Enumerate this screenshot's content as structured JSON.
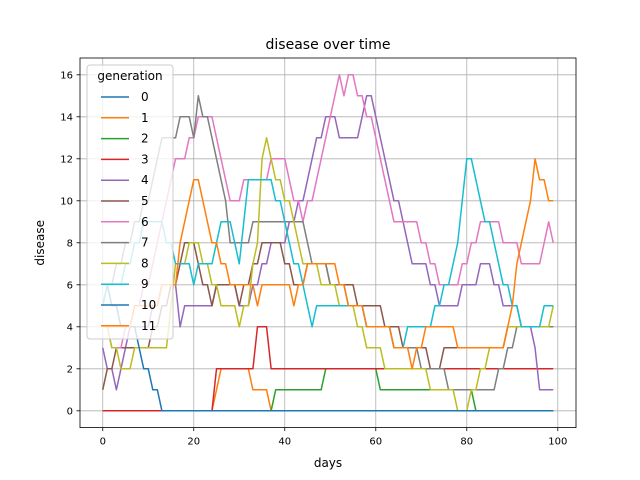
{
  "chart_data": {
    "type": "line",
    "title": "disease over time",
    "xlabel": "days",
    "ylabel": "disease",
    "xlim": [
      -5,
      104
    ],
    "ylim": [
      -0.8,
      16.8
    ],
    "xticks": [
      0,
      20,
      40,
      60,
      80,
      100
    ],
    "yticks": [
      0,
      2,
      4,
      6,
      8,
      10,
      12,
      14,
      16
    ],
    "grid": true,
    "legend": {
      "title": "generation",
      "placement": "upper-left"
    },
    "series": [
      {
        "name": "0",
        "color": "#1f77b4",
        "x": [
          0,
          99
        ],
        "y": [
          0,
          0
        ]
      },
      {
        "name": "1",
        "color": "#ff7f0e",
        "x": [
          0,
          24,
          25,
          26,
          32,
          33,
          36,
          37,
          99
        ],
        "y": [
          0,
          0,
          1,
          2,
          2,
          1,
          1,
          0,
          0
        ]
      },
      {
        "name": "2",
        "color": "#2ca02c",
        "x": [
          0,
          37,
          38,
          48,
          49,
          60,
          61,
          81,
          82,
          99
        ],
        "y": [
          0,
          0,
          1,
          1,
          2,
          2,
          1,
          1,
          0,
          0
        ]
      },
      {
        "name": "3",
        "color": "#d62728",
        "x": [
          0,
          24,
          25,
          33,
          34,
          36,
          37,
          99
        ],
        "y": [
          0,
          0,
          2,
          2,
          4,
          4,
          2,
          2
        ]
      },
      {
        "name": "4",
        "color": "#9467bd",
        "x": [
          0,
          1,
          2,
          3,
          4,
          5,
          6,
          7,
          8,
          10,
          12,
          14,
          16,
          17,
          18,
          19,
          20,
          22,
          24,
          26,
          28,
          30,
          32,
          34,
          36,
          38,
          40,
          42,
          44,
          46,
          48,
          50,
          52,
          54,
          56,
          58,
          60,
          62,
          64,
          66,
          68,
          70,
          72,
          74,
          76,
          78,
          80,
          82,
          84,
          86,
          88,
          90,
          92,
          94,
          96,
          98,
          99
        ],
        "y": [
          3,
          2,
          2,
          1,
          2,
          3,
          4,
          4,
          4,
          4,
          5,
          6,
          6,
          4,
          5,
          5,
          5,
          5,
          5,
          6,
          6,
          5,
          5,
          6,
          7,
          8,
          8,
          9,
          10,
          12,
          13,
          14,
          13,
          13,
          13,
          15,
          14,
          12,
          10,
          9,
          7,
          7,
          6,
          5,
          5,
          5,
          6,
          6,
          7,
          6,
          5,
          5,
          4,
          4,
          1,
          1,
          1
        ]
      },
      {
        "name": "5",
        "color": "#8c564b",
        "x": [
          0,
          2,
          4,
          6,
          8,
          10,
          12,
          14,
          16,
          18,
          20,
          22,
          24,
          26,
          28,
          30,
          32,
          34,
          36,
          38,
          40,
          42,
          44,
          46,
          48,
          50,
          52,
          54,
          56,
          58,
          60,
          62,
          64,
          66,
          68,
          70,
          72,
          74,
          76,
          78,
          80,
          82,
          84,
          86,
          88,
          90,
          92,
          94,
          96,
          98,
          99
        ],
        "y": [
          1,
          2,
          3,
          3,
          3,
          3,
          4,
          5,
          6,
          8,
          8,
          6,
          5,
          6,
          6,
          5,
          6,
          7,
          8,
          8,
          7,
          6,
          6,
          7,
          7,
          6,
          6,
          6,
          5,
          5,
          5,
          4,
          4,
          3,
          3,
          3,
          2,
          2,
          3,
          3,
          3,
          3,
          3,
          3,
          3,
          4,
          4,
          4,
          4,
          4,
          4
        ]
      },
      {
        "name": "6",
        "color": "#e377c2",
        "x": [
          0,
          2,
          4,
          6,
          8,
          10,
          12,
          14,
          16,
          18,
          20,
          22,
          24,
          26,
          28,
          30,
          32,
          34,
          36,
          38,
          40,
          42,
          44,
          46,
          48,
          50,
          51,
          52,
          53,
          54,
          56,
          58,
          60,
          62,
          64,
          66,
          68,
          70,
          72,
          74,
          76,
          78,
          80,
          82,
          84,
          86,
          88,
          90,
          92,
          94,
          96,
          98,
          99
        ],
        "y": [
          4,
          3,
          3,
          4,
          5,
          6,
          8,
          10,
          12,
          12,
          13,
          14,
          14,
          12,
          10,
          10,
          11,
          11,
          11,
          12,
          12,
          10,
          9,
          10,
          12,
          14,
          15,
          16,
          15,
          16,
          15,
          14,
          13,
          11,
          9,
          9,
          9,
          8,
          7,
          6,
          6,
          6,
          7,
          8,
          9,
          9,
          8,
          8,
          7,
          7,
          7,
          9,
          8
        ]
      },
      {
        "name": "7",
        "color": "#7f7f7f",
        "x": [
          0,
          2,
          4,
          6,
          8,
          10,
          12,
          14,
          16,
          18,
          20,
          21,
          22,
          24,
          26,
          28,
          30,
          32,
          34,
          36,
          38,
          40,
          42,
          44,
          46,
          48,
          50,
          52,
          54,
          56,
          58,
          60,
          62,
          64,
          66,
          68,
          70,
          72,
          74,
          76,
          78,
          80,
          82,
          84,
          86,
          88,
          90,
          92,
          94,
          96,
          98,
          99
        ],
        "y": [
          5,
          6,
          7,
          8,
          9,
          10,
          12,
          13,
          13,
          14,
          13,
          15,
          14,
          13,
          11,
          8,
          8,
          8,
          9,
          9,
          9,
          9,
          9,
          9,
          7,
          7,
          6,
          6,
          5,
          5,
          4,
          4,
          4,
          3,
          3,
          3,
          2,
          2,
          2,
          1,
          1,
          1,
          1,
          1,
          1,
          2,
          3,
          4,
          4,
          4,
          4,
          4
        ]
      },
      {
        "name": "8",
        "color": "#bcbd22",
        "x": [
          0,
          2,
          4,
          6,
          8,
          10,
          12,
          14,
          16,
          18,
          20,
          22,
          24,
          26,
          28,
          30,
          32,
          34,
          35,
          36,
          38,
          40,
          42,
          44,
          46,
          48,
          50,
          52,
          54,
          56,
          58,
          60,
          62,
          64,
          66,
          68,
          70,
          72,
          74,
          76,
          78,
          79,
          80,
          82,
          84,
          86,
          88,
          90,
          92,
          94,
          96,
          98,
          99
        ],
        "y": [
          4,
          3,
          2,
          2,
          3,
          3,
          3,
          3,
          7,
          7,
          8,
          7,
          6,
          5,
          5,
          4,
          5,
          8,
          12,
          13,
          11,
          10,
          9,
          7,
          7,
          6,
          6,
          5,
          5,
          4,
          3,
          3,
          2,
          2,
          2,
          2,
          2,
          1,
          1,
          1,
          0,
          0,
          0,
          1,
          2,
          3,
          3,
          4,
          4,
          4,
          4,
          4,
          5
        ]
      },
      {
        "name": "9",
        "color": "#17becf",
        "x": [
          0,
          2,
          4,
          6,
          8,
          10,
          12,
          14,
          16,
          18,
          20,
          22,
          24,
          26,
          28,
          30,
          32,
          34,
          36,
          38,
          40,
          42,
          44,
          46,
          48,
          50,
          52,
          54,
          56,
          58,
          60,
          62,
          64,
          66,
          68,
          70,
          72,
          74,
          76,
          78,
          80,
          82,
          84,
          86,
          88,
          90,
          92,
          94,
          96,
          98,
          99
        ],
        "y": [
          5,
          6,
          6,
          7,
          8,
          9,
          9,
          8,
          7,
          7,
          6,
          7,
          7,
          9,
          9,
          7,
          11,
          11,
          11,
          10,
          9,
          7,
          6,
          4,
          5,
          5,
          5,
          5,
          5,
          4,
          4,
          4,
          3,
          3,
          4,
          4,
          4,
          5,
          6,
          8,
          12,
          11,
          9,
          8,
          6,
          5,
          4,
          4,
          4,
          5,
          5
        ]
      },
      {
        "name": "10",
        "color": "#1f77b4",
        "x": [
          0,
          2,
          4,
          6,
          8,
          9,
          10,
          11,
          12,
          13,
          14,
          16,
          18,
          20,
          22,
          24,
          26,
          28,
          30,
          32,
          34,
          36,
          38,
          40,
          42,
          44,
          46,
          48,
          50,
          52,
          54,
          56,
          58,
          60,
          62,
          64,
          66,
          68,
          70,
          72,
          74,
          76,
          78,
          80,
          82,
          84,
          86,
          88,
          90,
          92,
          94,
          96,
          98,
          99
        ],
        "y": [
          6,
          5,
          4,
          4,
          3,
          2,
          2,
          1,
          1,
          0,
          0,
          0,
          0,
          0,
          0,
          0,
          0,
          0,
          0,
          0,
          0,
          0,
          0,
          0,
          0,
          0,
          0,
          0,
          0,
          0,
          0,
          0,
          0,
          0,
          0,
          0,
          0,
          0,
          0,
          0,
          0,
          0,
          0,
          0,
          0,
          0,
          0,
          0,
          0,
          0,
          0,
          0,
          0,
          0
        ]
      },
      {
        "name": "11",
        "color": "#ff7f0e",
        "x": [
          0,
          2,
          4,
          6,
          8,
          10,
          12,
          14,
          16,
          18,
          19,
          20,
          22,
          24,
          26,
          28,
          30,
          32,
          34,
          36,
          38,
          40,
          42,
          44,
          46,
          48,
          50,
          52,
          54,
          56,
          58,
          60,
          62,
          64,
          66,
          68,
          70,
          72,
          74,
          76,
          78,
          80,
          82,
          84,
          86,
          88,
          90,
          92,
          94,
          95,
          96,
          98,
          99
        ],
        "y": [
          4,
          4,
          4,
          4,
          5,
          5,
          5,
          6,
          6,
          9,
          10,
          11,
          10,
          8,
          7,
          6,
          6,
          6,
          5,
          6,
          6,
          6,
          5,
          6,
          7,
          7,
          7,
          6,
          5,
          5,
          4,
          4,
          4,
          3,
          3,
          2,
          3,
          4,
          4,
          4,
          3,
          3,
          3,
          3,
          3,
          3,
          5,
          8,
          10,
          12,
          11,
          10,
          10
        ]
      }
    ]
  }
}
